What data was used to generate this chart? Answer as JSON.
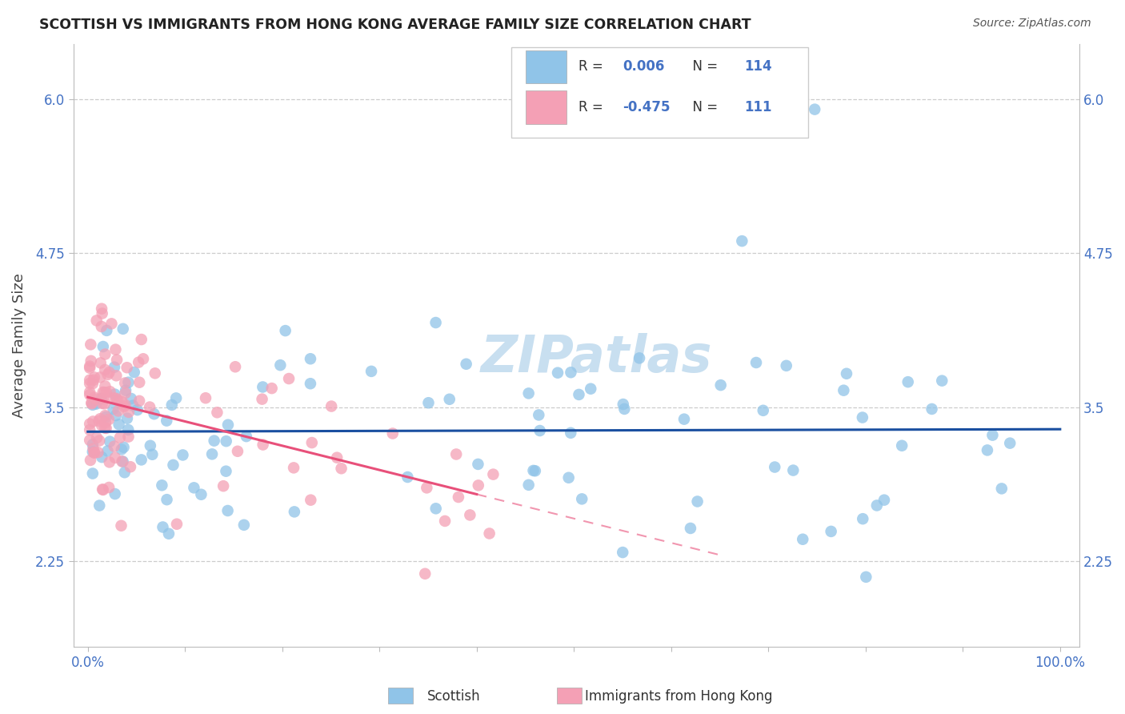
{
  "title": "SCOTTISH VS IMMIGRANTS FROM HONG KONG AVERAGE FAMILY SIZE CORRELATION CHART",
  "source": "Source: ZipAtlas.com",
  "ylabel": "Average Family Size",
  "xlim": [
    0,
    100
  ],
  "ylim": [
    1.55,
    6.45
  ],
  "yticks": [
    2.25,
    3.5,
    4.75,
    6.0
  ],
  "xtick_positions": [
    0,
    10,
    20,
    30,
    40,
    50,
    60,
    70,
    80,
    90,
    100
  ],
  "xtick_labels": [
    "0.0%",
    "",
    "",
    "",
    "",
    "",
    "",
    "",
    "",
    "",
    "100.0%"
  ],
  "r_scottish": "0.006",
  "n_scottish": "114",
  "r_hk": "-0.475",
  "n_hk": "111",
  "scottish_color": "#90c4e8",
  "hk_color": "#f4a0b5",
  "scottish_line_color": "#1a4fa0",
  "hk_line_color": "#e8507a",
  "background_color": "#ffffff",
  "grid_color": "#cccccc",
  "title_color": "#222222",
  "tick_color": "#4472c4",
  "legend_color": "#4472c4",
  "watermark_color": "#c8dff0",
  "legend_box_color": "#f0f0f0"
}
